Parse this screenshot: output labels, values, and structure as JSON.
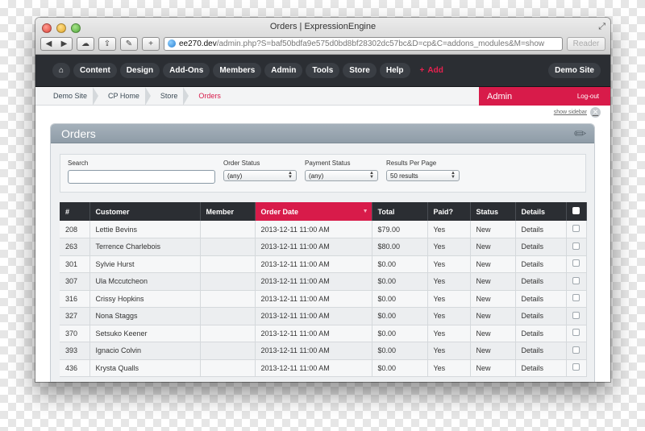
{
  "window": {
    "title": "Orders | ExpressionEngine"
  },
  "browser": {
    "url_host": "ee270.dev",
    "url_path": "/admin.php?S=baf50bdfa9e575d0bd8bf28302dc57bc&D=cp&C=addons_modules&M=show",
    "reader_label": "Reader",
    "back_symbol": "◀",
    "forward_symbol": "▶",
    "new_tab_symbol": "+"
  },
  "nav": {
    "home_symbol": "⌂",
    "items": [
      "Content",
      "Design",
      "Add-Ons",
      "Members",
      "Admin",
      "Tools",
      "Store",
      "Help"
    ],
    "add_label": "Add",
    "add_symbol": "+",
    "site_label": "Demo Site"
  },
  "breadcrumb": {
    "items": [
      "Demo Site",
      "CP Home",
      "Store"
    ],
    "current": "Orders"
  },
  "account": {
    "admin_label": "Admin",
    "logout_label": "Log-out",
    "show_sidebar_label": "show sidebar"
  },
  "panel": {
    "title": "Orders"
  },
  "filters": {
    "search_label": "Search",
    "search_value": "",
    "order_status_label": "Order Status",
    "order_status_value": "(any)",
    "payment_status_label": "Payment Status",
    "payment_status_value": "(any)",
    "results_label": "Results Per Page",
    "results_value": "50 results"
  },
  "table": {
    "columns": [
      "#",
      "Customer",
      "Member",
      "Order Date",
      "Total",
      "Paid?",
      "Status",
      "Details"
    ],
    "sorted_column": "Order Date",
    "rows": [
      {
        "id": "208",
        "customer": "Lettie Bevins",
        "member": "",
        "date": "2013-12-11 11:00 AM",
        "total": "$79.00",
        "paid": "Yes",
        "status": "New",
        "details": "Details"
      },
      {
        "id": "263",
        "customer": "Terrence Charlebois",
        "member": "",
        "date": "2013-12-11 11:00 AM",
        "total": "$80.00",
        "paid": "Yes",
        "status": "New",
        "details": "Details"
      },
      {
        "id": "301",
        "customer": "Sylvie Hurst",
        "member": "",
        "date": "2013-12-11 11:00 AM",
        "total": "$0.00",
        "paid": "Yes",
        "status": "New",
        "details": "Details"
      },
      {
        "id": "307",
        "customer": "Ula Mccutcheon",
        "member": "",
        "date": "2013-12-11 11:00 AM",
        "total": "$0.00",
        "paid": "Yes",
        "status": "New",
        "details": "Details"
      },
      {
        "id": "316",
        "customer": "Crissy Hopkins",
        "member": "",
        "date": "2013-12-11 11:00 AM",
        "total": "$0.00",
        "paid": "Yes",
        "status": "New",
        "details": "Details"
      },
      {
        "id": "327",
        "customer": "Nona Staggs",
        "member": "",
        "date": "2013-12-11 11:00 AM",
        "total": "$0.00",
        "paid": "Yes",
        "status": "New",
        "details": "Details"
      },
      {
        "id": "370",
        "customer": "Setsuko Keener",
        "member": "",
        "date": "2013-12-11 11:00 AM",
        "total": "$0.00",
        "paid": "Yes",
        "status": "New",
        "details": "Details"
      },
      {
        "id": "393",
        "customer": "Ignacio Colvin",
        "member": "",
        "date": "2013-12-11 11:00 AM",
        "total": "$0.00",
        "paid": "Yes",
        "status": "New",
        "details": "Details"
      },
      {
        "id": "436",
        "customer": "Krysta Qualls",
        "member": "",
        "date": "2013-12-11 11:00 AM",
        "total": "$0.00",
        "paid": "Yes",
        "status": "New",
        "details": "Details"
      }
    ]
  },
  "colors": {
    "accent": "#d81b4a",
    "nav_bg": "#2b2e33",
    "paid_green": "#1a9a2a"
  }
}
